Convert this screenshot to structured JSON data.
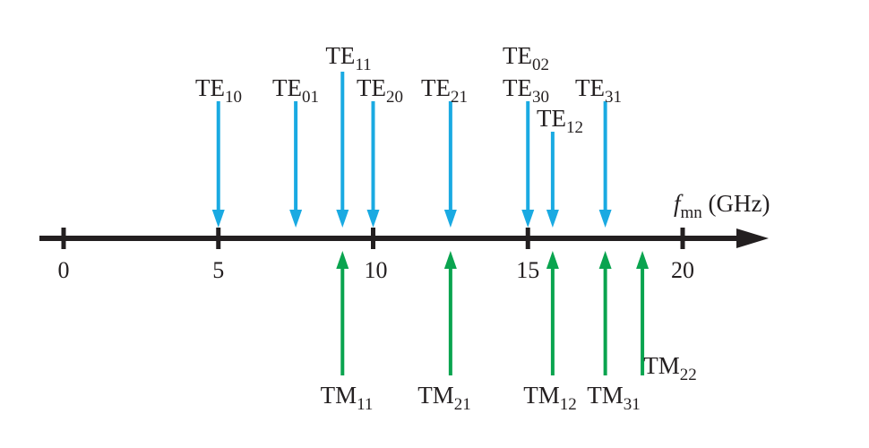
{
  "colors": {
    "te": "#1aaae2",
    "tm": "#0aa44f",
    "axis": "#231f20",
    "text": "#231f20"
  },
  "axis": {
    "label_main": "f",
    "label_sub": "mn",
    "label_unit": " (GHz)",
    "ticks": [
      {
        "value": 0,
        "label": "0"
      },
      {
        "value": 5,
        "label": "5"
      },
      {
        "value": 10,
        "label": "10"
      },
      {
        "value": 15,
        "label": "15"
      },
      {
        "value": 20,
        "label": "20"
      }
    ]
  },
  "te_modes": [
    {
      "main": "TE",
      "sub": "10",
      "freq": 5.0
    },
    {
      "main": "TE",
      "sub": "01",
      "freq": 7.5
    },
    {
      "main": "TE",
      "sub": "11",
      "freq": 9.01
    },
    {
      "main": "TE",
      "sub": "20",
      "freq": 10.0
    },
    {
      "main": "TE",
      "sub": "21",
      "freq": 12.5
    },
    {
      "main": "TE",
      "sub": "02",
      "freq": 15.0
    },
    {
      "main": "TE",
      "sub": "30",
      "freq": 15.0
    },
    {
      "main": "TE",
      "sub": "12",
      "freq": 15.8
    },
    {
      "main": "TE",
      "sub": "31",
      "freq": 17.5
    }
  ],
  "tm_modes": [
    {
      "main": "TM",
      "sub": "11",
      "freq": 9.01
    },
    {
      "main": "TM",
      "sub": "21",
      "freq": 12.5
    },
    {
      "main": "TM",
      "sub": "12",
      "freq": 15.8
    },
    {
      "main": "TM",
      "sub": "31",
      "freq": 17.5
    },
    {
      "main": "TM",
      "sub": "22",
      "freq": 18.7
    }
  ]
}
